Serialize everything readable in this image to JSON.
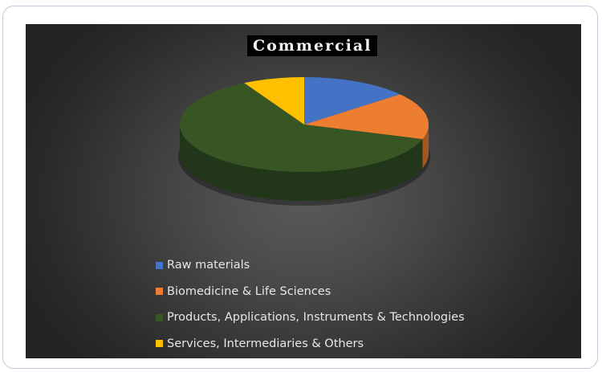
{
  "chart_data": {
    "type": "pie",
    "title": "Commercial",
    "categories": [
      "Raw materials",
      "Biomedicine & Life Sciences",
      "Products, Applications, Instruments & Technologies",
      "Services, Intermediaries & Others"
    ],
    "values": [
      14,
      16,
      62,
      8
    ],
    "colors": [
      "#4472c4",
      "#ed7d31",
      "#375623",
      "#ffc000"
    ],
    "side_colors": [
      "#2c4d8a",
      "#a5561f",
      "#22361a",
      "#b38700"
    ],
    "style": "3d",
    "legend_position": "bottom"
  }
}
